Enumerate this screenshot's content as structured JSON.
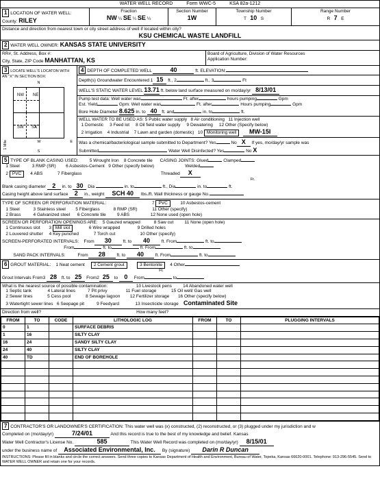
{
  "form_header": {
    "title": "WATER WELL RECORD",
    "form_no": "Form WWC-5",
    "ksa": "KSA 82a-1212"
  },
  "sec1": {
    "num": "1",
    "label": "LOCATION OF WATER WELL:",
    "county_lbl": "County:",
    "county": "RILEY",
    "fraction_lbl": "Fraction",
    "fr1": "NW",
    "fr1b": "¼",
    "fr2": "SE",
    "fr2b": "¼",
    "fr3": "SE",
    "fr3b": "¼",
    "section_lbl": "Section Number",
    "section": "1W",
    "twp_lbl": "Township Number",
    "twp": "10",
    "twp_dir": "S",
    "rng_lbl": "Range Number",
    "rng": "7",
    "rng_dir": "E",
    "dist_lbl": "Distance and direction from nearest town or city street address of well if located within city?",
    "dist": "KSU CHEMICAL WASTE LANDFILL"
  },
  "sec2": {
    "num": "2",
    "label": "WATER WELL OWNER:",
    "owner": "KANSAS STATE UNIVERSITY",
    "addr_lbl": "RR#, St. Address, Box #:",
    "city_lbl": "City, State, ZIP Code",
    "city": "MANHATTAN, KS",
    "board": "Board of Agriculture, Division of Water Resources",
    "app_lbl": "Application Number:"
  },
  "sec3": {
    "num": "3",
    "label": "LOCATE WELL'S LOCATON WITH AN \"X\" IN SECTION BOX:"
  },
  "sec4": {
    "num": "4",
    "depth_lbl": "DEPTH OF COMPLETED WELL",
    "depth": "40",
    "elev_lbl": "ft. ELEVATION:",
    "gw_lbl": "Depth(s) Groundwater Encountered",
    "gw1": "15",
    "swl_lbl": "WELL'S STATIC WATER LEVEL",
    "swl": "13.71",
    "swl_sfx": "ft. below land surface measured on mo/day/yr",
    "swl_date": "8/13/01",
    "pump_lbl": "Pump test data:  Well water was",
    "yield_lbl": "Est. Yield",
    "bore_lbl": "Bore Hole Diameter",
    "bore": "8.625",
    "bore_to": "40",
    "use_lbl": "WELL WATER TO BE USED AS:",
    "u1": "1  Domestic",
    "u2": "3  Feed lot",
    "u3": "5  Public water supply",
    "u4": "8  Air conditioning",
    "u5": "11  Injection well",
    "u6": "2  Irrigation",
    "u7": "4  Industrial",
    "u8": "7  Lawn and garden (domestic)",
    "u9": "9  Dewatering",
    "u10": "12  Other (Specify below)",
    "u11": "Monitoring well",
    "u12": "8  Oil field water supply",
    "well_id": "MW-15I",
    "chem_lbl": "Was a chemical/bacteriological sample submitted to Department? Yes",
    "chem_no": "X",
    "chem_sfx": "If yes, mo/day/yr sample was",
    "sub_lbl": "Submitted",
    "disinfect_lbl": "Water Well Disinfected? Yes",
    "disinfect_no": "X"
  },
  "sec5": {
    "num": "5",
    "label": "TYPE OF BLANK CASING USED:",
    "c1": "1  Steel",
    "c2": "2",
    "c2v": "PVC",
    "c3": "3  RMP (SR)",
    "c4": "4  ABS",
    "c5": "5  Wrought Iron",
    "c6": "6  Asbestos-Cement",
    "c7": "7  Fiberglass",
    "c8": "8  Concrete tile",
    "c9": "9  Other (specify below)",
    "joints_lbl": "CASING JOINTS:  Glued",
    "joints_c": "Clamped",
    "joints_w": "Welded",
    "joints_t": "Threaded",
    "joints_tv": "X",
    "dia_lbl": "Blank casing diameter",
    "dia": "2",
    "dia_to": "30",
    "ht_lbl": "Casing height above land surface",
    "ht": "2",
    "wt_lbl": "in., weight",
    "wt": "SCH 40",
    "wt_sfx": "lbs./ft. Wall thickness or gauge No.",
    "perf_lbl": "TYPE OF SCREEN OR PERFORATION MATERIAL:",
    "p1": "1  Steel",
    "p2": "2  Brass",
    "p3": "3  Stainless steel",
    "p4": "4  Galvanized steel",
    "p5": "5  Fiberglass",
    "p6": "6  Concrete tile",
    "p7": "7",
    "p7v": "PVC",
    "p8": "8  RMP (SR)",
    "p9": "9  ABS",
    "p10": "10  Asbestos-cement",
    "p11": "11  Other (specify)",
    "p12": "12  None used (open hole)",
    "open_lbl": "SCREEN OR PERFORATION OPENINGS ARE:",
    "o1": "1  Continuous slot",
    "o2": "2  Louvered shutter",
    "o3": "3",
    "o3v": "Mill slot",
    "o4": "4  Key punched",
    "o5": "5  Gauzed wrapped",
    "o6": "6  Wire wrapped",
    "o7": "7  Torch cut",
    "o8": "8  Saw cut",
    "o9": "9  Drilled holes",
    "o10": "10  Other (specify)",
    "o11": "11  None (open hole)",
    "sperf_lbl": "SCREEN-PERFORATED INTERVALS:",
    "sp_from": "30",
    "sp_to": "40",
    "sand_lbl": "SAND PACK INTERVALS:",
    "sand_from": "28",
    "sand_to": "40"
  },
  "sec6": {
    "num": "6",
    "label": "GROUT MATERIAL:",
    "g1": "1  Neat cement",
    "g2": "2  Cement grout",
    "g3": "3 Bentonite",
    "g4": "4  Other",
    "gi_lbl": "Grout Intervals   From3",
    "gi_from": "28",
    "gi_to": "25",
    "gi_from2": "25",
    "gi_to2": "0",
    "contam_lbl": "What is the nearest source of possible contamination:",
    "s1": "1  Septic tank",
    "s2": "2  Sewer lines",
    "s3": "3  Watertight sewer lines",
    "s4": "4  Lateral lines",
    "s5": "5  Cess pool",
    "s6": "6  Seepage pit",
    "s7": "7  Pit privy",
    "s8": "8  Sewage lagoon",
    "s9": "9  Feedyard",
    "s10": "10  Livestock pens",
    "s11": "11  Fuel storage",
    "s12": "12  Fertilizer storage",
    "s13": "13  Insecticide storage",
    "s14": "14  Abandoned water well",
    "s15": "15  Oil well/ Gas well",
    "s16": "16  Other (specify below)",
    "s16v": "Contaminated Site",
    "dir_lbl": "Direction from well?",
    "many_lbl": "How many feet?"
  },
  "log": {
    "h1": "FROM",
    "h2": "TO",
    "h3": "CODE",
    "h4": "LITHOLOGIC LOG",
    "h5": "FROM",
    "h6": "TO",
    "h7": "PLUGGING INTERVALS",
    "rows": [
      {
        "f": "0",
        "t": "1",
        "d": "SURFACE DEBRIS"
      },
      {
        "f": "1",
        "t": "16",
        "d": "SILTY CLAY"
      },
      {
        "f": "16",
        "t": "24",
        "d": "SANDY SILTY CLAY"
      },
      {
        "f": "24",
        "t": "40",
        "d": "SILTY CLAY"
      },
      {
        "f": "40",
        "t": "TD",
        "d": "END OF BOREHOLE"
      }
    ]
  },
  "sec7": {
    "num": "7",
    "cert": "CONTRACTOR'S OR LANDOWNER'S CERTIFICATION:  This water well was (x) constructed, (2) reconstructed, or (3) plugged under my jurisdiction and w",
    "comp_lbl": "Completed on (mo/day/yr)",
    "comp_date": "7/24/01",
    "comp_sfx": "And this record is true to the best of my knowledge and belief.  Kansas",
    "lic_lbl": "Water Well Contractor's License No.",
    "lic": "585",
    "lic_sfx": "This Water Well Record was completed on (mo/day/yr)",
    "rec_date": "8/15/01",
    "bus_lbl": "under the business name of",
    "bus": "Associated Environmental, Inc.",
    "sig_lbl": "By (signature)",
    "sig": "Darin R Duncan",
    "instr": "INSTRUCTIONS:  Please fill in blanks and circle the correct answers.  Send three copies to Kansas Department of Health and Environment, Bureau of Water, Topeka, Kansas 66620-0001.  Telephone: 913-296-5545.  Send to WATER WELL OWNER and retain one for your records."
  }
}
